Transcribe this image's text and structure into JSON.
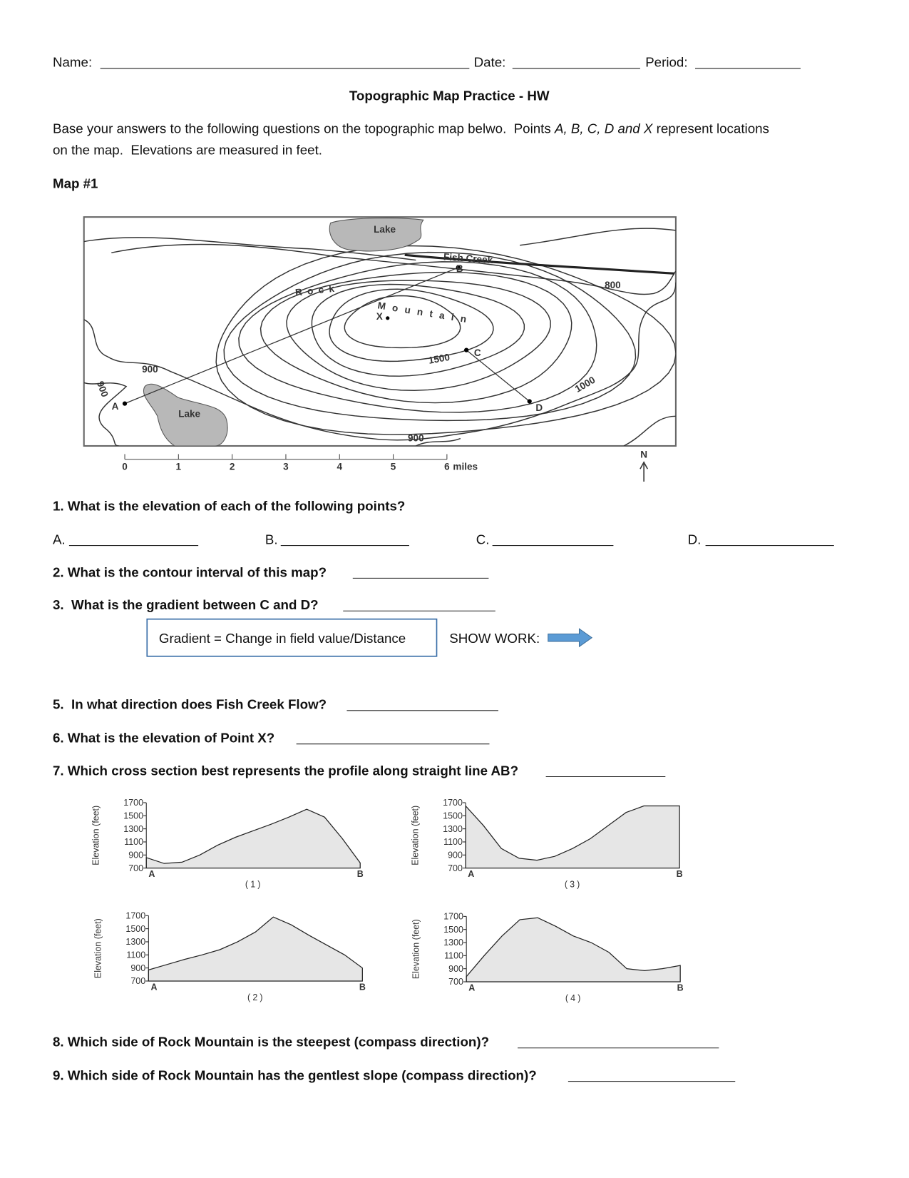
{
  "header": {
    "name_label": "Name:",
    "date_label": "Date:",
    "period_label": "Period:"
  },
  "title": "Topographic Map Practice - HW",
  "intro": {
    "line1_start": "Base your answers to the following questions on the topographic map belwo.  Points ",
    "points": "A, B, C, D and X",
    "line1_end": " represent locations",
    "line2": "on the map.  Elevations are measured in feet."
  },
  "map_heading": "Map #1",
  "map": {
    "lake_labels": [
      "Lake",
      "Lake"
    ],
    "creek": "Fish Creek",
    "contour_labels": [
      "800",
      "900",
      "900",
      "900",
      "1000",
      "1500"
    ],
    "rock": "Rock",
    "mountain": "Mountain",
    "points": [
      "A",
      "B",
      "C",
      "D",
      "X"
    ],
    "scale_ticks": [
      "0",
      "1",
      "2",
      "3",
      "4",
      "5",
      "6"
    ],
    "scale_unit": "miles",
    "north": "N"
  },
  "questions": {
    "q1": "1. What is the elevation of each of the following points?",
    "q1_answers": [
      "A.",
      "B.",
      "C.",
      "D."
    ],
    "q2": "2. What is the contour interval of this map?",
    "q3": "3.  What is the gradient between C and D?",
    "formula": "Gradient = Change in field value/Distance",
    "show_work": "SHOW WORK:",
    "q5": "5.  In what direction does Fish Creek Flow?",
    "q6": "6. What is the elevation of Point X?",
    "q7": "7. Which cross section best represents the profile along straight line AB?",
    "q8": "8. Which side of Rock Mountain is the steepest (compass direction)?",
    "q9": "9. Which side of Rock Mountain has the gentlest slope (compass direction)?"
  },
  "profiles": [
    {
      "caption": "(1)",
      "y_label": "Elevation (feet)",
      "yticks": [
        1700,
        1500,
        1300,
        1100,
        900,
        700
      ],
      "start": "A",
      "end": "B",
      "values": [
        860,
        770,
        790,
        900,
        1050,
        1170,
        1270,
        1370,
        1480,
        1600,
        1480,
        1150,
        780
      ]
    },
    {
      "caption": "(2)",
      "y_label": "Elevation (feet)",
      "yticks": [
        1700,
        1500,
        1300,
        1100,
        900,
        700
      ],
      "start": "A",
      "end": "B",
      "values": [
        870,
        950,
        1030,
        1100,
        1180,
        1300,
        1450,
        1680,
        1560,
        1400,
        1250,
        1100,
        900
      ]
    },
    {
      "caption": "(3)",
      "y_label": "Elevation (feet)",
      "yticks": [
        1700,
        1500,
        1300,
        1100,
        900,
        700
      ],
      "start": "A",
      "end": "B",
      "values": [
        1650,
        1350,
        1000,
        850,
        820,
        880,
        1000,
        1150,
        1350,
        1550,
        1650,
        1650,
        1650
      ]
    },
    {
      "caption": "(4)",
      "y_label": "Elevation (feet)",
      "yticks": [
        1700,
        1500,
        1300,
        1100,
        900,
        700
      ],
      "start": "A",
      "end": "B",
      "values": [
        780,
        1100,
        1400,
        1650,
        1680,
        1550,
        1400,
        1300,
        1150,
        900,
        870,
        900,
        950
      ]
    }
  ]
}
